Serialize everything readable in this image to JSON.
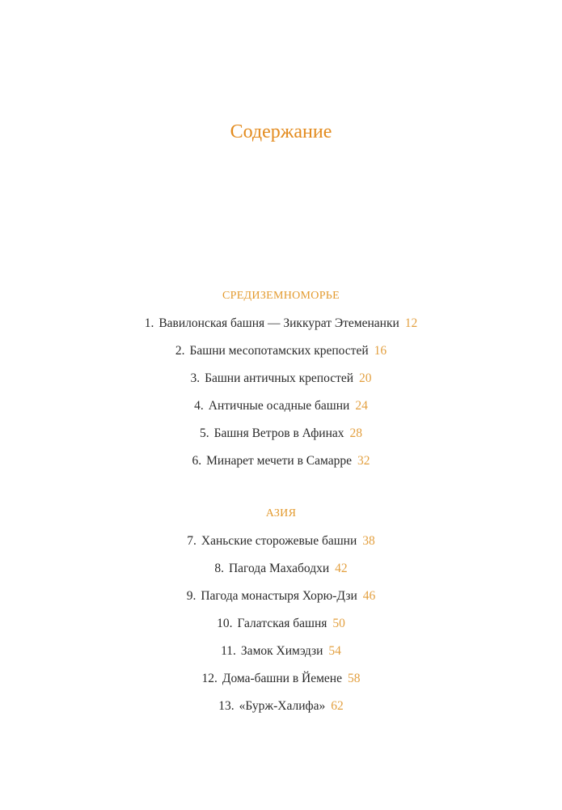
{
  "title": "Содержание",
  "sections": [
    {
      "heading": "СРЕДИЗЕМНОМОРЬЕ",
      "items": [
        {
          "num": "1.",
          "text": "Вавилонская башня — Зиккурат Этеменанки",
          "page": "12"
        },
        {
          "num": "2.",
          "text": "Башни месопотамских крепостей",
          "page": "16"
        },
        {
          "num": "3.",
          "text": "Башни античных крепостей",
          "page": "20"
        },
        {
          "num": "4.",
          "text": "Античные осадные башни",
          "page": "24"
        },
        {
          "num": "5.",
          "text": "Башня Ветров в Афинах",
          "page": "28"
        },
        {
          "num": "6.",
          "text": "Минарет мечети в Самарре",
          "page": "32"
        }
      ]
    },
    {
      "heading": "АЗИЯ",
      "items": [
        {
          "num": "7.",
          "text": "Ханьские сторожевые башни",
          "page": "38"
        },
        {
          "num": "8.",
          "text": "Пагода Махабодхи",
          "page": "42"
        },
        {
          "num": "9.",
          "text": "Пагода монастыря Хорю-Дзи",
          "page": "46"
        },
        {
          "num": "10.",
          "text": "Галатская башня",
          "page": "50"
        },
        {
          "num": "11.",
          "text": "Замок Химэдзи",
          "page": "54"
        },
        {
          "num": "12.",
          "text": "Дома-башни в Йемене",
          "page": "58"
        },
        {
          "num": "13.",
          "text": "«Бурж-Халифа»",
          "page": "62"
        }
      ]
    }
  ],
  "colors": {
    "accent": "#e38b1e",
    "page_number": "#e3a040",
    "text": "#2a2a2a"
  }
}
